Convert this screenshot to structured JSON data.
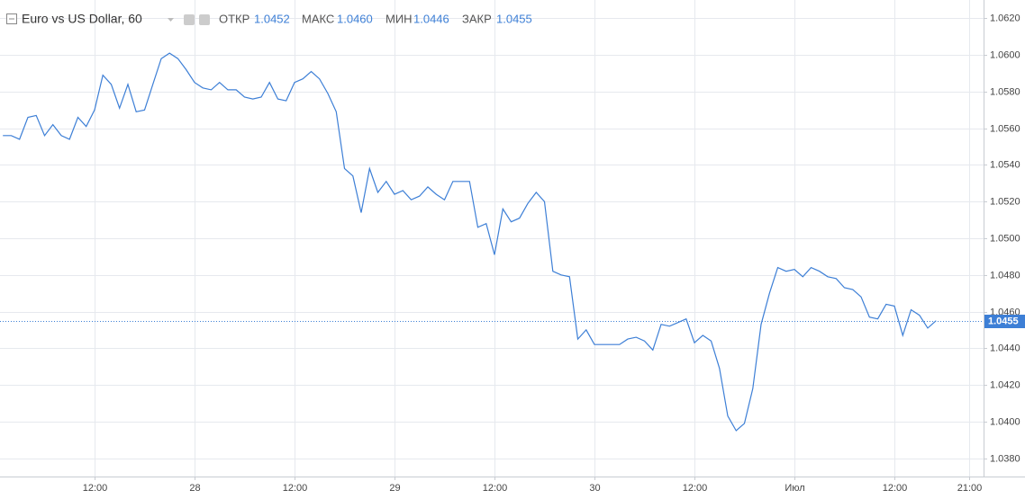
{
  "chart_data": {
    "type": "line",
    "title": "Euro vs US Dollar, 60",
    "ohlc": [
      {
        "label": "ОТКР",
        "value": "1.0452"
      },
      {
        "label": "МАКС",
        "value": "1.0460"
      },
      {
        "label": "МИН",
        "value": "1.0446"
      },
      {
        "label": "ЗАКР",
        "value": "1.0455"
      }
    ],
    "last_price": 1.0455,
    "x": [
      1,
      2,
      3,
      4,
      5,
      6,
      7,
      8,
      9,
      10,
      11,
      12,
      13,
      14,
      15,
      16,
      17,
      18,
      19,
      20,
      21,
      22,
      23,
      24,
      25,
      26,
      27,
      28,
      29,
      30,
      31,
      32,
      33,
      34,
      35,
      36,
      37,
      38,
      39,
      40,
      41,
      42,
      43,
      44,
      45,
      46,
      47,
      48,
      49,
      50,
      51,
      52,
      53,
      54,
      55,
      56,
      57,
      58,
      59,
      60,
      61,
      62,
      63,
      64,
      65,
      66,
      67,
      68,
      69,
      70,
      71,
      72,
      73,
      74,
      75,
      76,
      77,
      78,
      79,
      80,
      81,
      82,
      83,
      84,
      85,
      86,
      87,
      88,
      89,
      90,
      91,
      92,
      93,
      94,
      95,
      96,
      97,
      98,
      99,
      100,
      101,
      102,
      103,
      104,
      105,
      106,
      107,
      108,
      109,
      110,
      111,
      112,
      113
    ],
    "series": [
      {
        "color": "#3d7fd6",
        "values": [
          1.0556,
          1.0556,
          1.0554,
          1.0566,
          1.0567,
          1.0556,
          1.0562,
          1.0556,
          1.0554,
          1.0566,
          1.0561,
          1.057,
          1.0589,
          1.0584,
          1.0571,
          1.0584,
          1.0569,
          1.057,
          1.0584,
          1.0598,
          1.0601,
          1.0598,
          1.0592,
          1.0585,
          1.0582,
          1.0581,
          1.0585,
          1.0581,
          1.0581,
          1.0577,
          1.0576,
          1.0577,
          1.0585,
          1.0576,
          1.0575,
          1.0585,
          1.0587,
          1.0591,
          1.0587,
          1.0579,
          1.0569,
          1.0538,
          1.0534,
          1.0514,
          1.0538,
          1.0525,
          1.0531,
          1.0524,
          1.0526,
          1.0521,
          1.0523,
          1.0528,
          1.0524,
          1.0521,
          1.0531,
          1.0531,
          1.0531,
          1.0506,
          1.0508,
          1.0491,
          1.0516,
          1.0509,
          1.0511,
          1.0519,
          1.0525,
          1.052,
          1.0482,
          1.048,
          1.0479,
          1.0445,
          1.045,
          1.0442,
          1.0442,
          1.0442,
          1.0442,
          1.0445,
          1.0446,
          1.0444,
          1.0439,
          1.0453,
          1.0452,
          1.0454,
          1.0456,
          1.0443,
          1.0447,
          1.0444,
          1.0429,
          1.0403,
          1.0395,
          1.0399,
          1.0418,
          1.0453,
          1.047,
          1.0484,
          1.0482,
          1.0483,
          1.0479,
          1.0484,
          1.0482,
          1.0479,
          1.0478,
          1.0473,
          1.0472,
          1.0468,
          1.0457,
          1.0456,
          1.0464,
          1.0463,
          1.0447,
          1.0461,
          1.0458,
          1.0451,
          1.0455
        ]
      }
    ],
    "xlim": [
      0.65,
      118.7
    ],
    "xticks": [
      {
        "value": 12,
        "label": "12:00"
      },
      {
        "value": 24,
        "label": "28"
      },
      {
        "value": 36,
        "label": "12:00"
      },
      {
        "value": 48,
        "label": "29"
      },
      {
        "value": 60,
        "label": "12:00"
      },
      {
        "value": 72,
        "label": "30"
      },
      {
        "value": 84,
        "label": "12:00"
      },
      {
        "value": 96,
        "label": "Июл"
      },
      {
        "value": 108,
        "label": "12:00"
      },
      {
        "value": 117,
        "label": "21:00"
      }
    ],
    "ylim": [
      1.037,
      1.063
    ],
    "yticks": [
      {
        "value": 1.038,
        "label": "1.0380"
      },
      {
        "value": 1.04,
        "label": "1.0400"
      },
      {
        "value": 1.042,
        "label": "1.0420"
      },
      {
        "value": 1.044,
        "label": "1.0440"
      },
      {
        "value": 1.046,
        "label": "1.0460"
      },
      {
        "value": 1.048,
        "label": "1.0480"
      },
      {
        "value": 1.05,
        "label": "1.0500"
      },
      {
        "value": 1.052,
        "label": "1.0520"
      },
      {
        "value": 1.054,
        "label": "1.0540"
      },
      {
        "value": 1.056,
        "label": "1.0560"
      },
      {
        "value": 1.058,
        "label": "1.0580"
      },
      {
        "value": 1.06,
        "label": "1.0600"
      },
      {
        "value": 1.062,
        "label": "1.0620"
      }
    ],
    "grid": true
  }
}
